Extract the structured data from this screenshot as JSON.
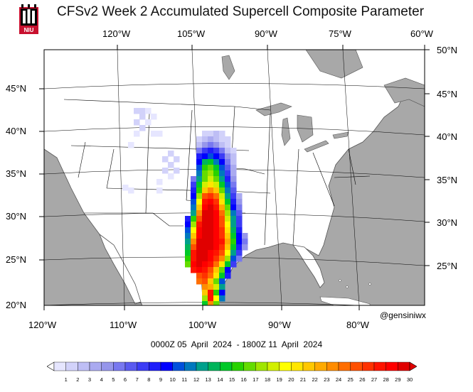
{
  "title": "CFSv2 Week 2 Accumulated Supercell Composite Parameter",
  "logo_text": "NIU",
  "top_lon_labels": [
    "120°W",
    "105°W",
    "90°W",
    "75°W",
    "60°W"
  ],
  "bottom_lon_labels": [
    "120°W",
    "110°W",
    "100°W",
    "90°W",
    "80°W"
  ],
  "left_lat_labels": [
    "45°N",
    "40°N",
    "35°N",
    "30°N",
    "25°N",
    "20°N"
  ],
  "right_lat_labels": [
    "50°N",
    "45°N",
    "40°N",
    "35°N",
    "30°N",
    "25°N"
  ],
  "credit": "@gensiniwx",
  "date_range": "0000Z 05  April  2024  - 1800Z 11  April  2024",
  "colorbar": {
    "ticks": [
      "1",
      "2",
      "3",
      "4",
      "5",
      "6",
      "7",
      "8",
      "9",
      "10",
      "11",
      "12",
      "13",
      "14",
      "15",
      "16",
      "17",
      "18",
      "19",
      "20",
      "21",
      "22",
      "23",
      "24",
      "25",
      "26",
      "27",
      "28",
      "29",
      "30"
    ],
    "colors": [
      "#ffffff",
      "#e6e6ff",
      "#d2d2fa",
      "#bebef5",
      "#aaaaf0",
      "#9696eb",
      "#7878f0",
      "#5a5af0",
      "#3c3cf5",
      "#1e1efa",
      "#0000ff",
      "#0050dc",
      "#0078be",
      "#00a08c",
      "#00b45a",
      "#00c828",
      "#28d200",
      "#64dc00",
      "#a0e600",
      "#d2f000",
      "#ffff00",
      "#ffe600",
      "#ffc800",
      "#ffaa00",
      "#ff8c00",
      "#ff6e00",
      "#ff5000",
      "#ff3200",
      "#ff1400",
      "#ff0000",
      "#e00000"
    ]
  },
  "colors": {
    "land": "#ffffff",
    "water_outside": "#a8a8a8",
    "border": "#000000"
  }
}
